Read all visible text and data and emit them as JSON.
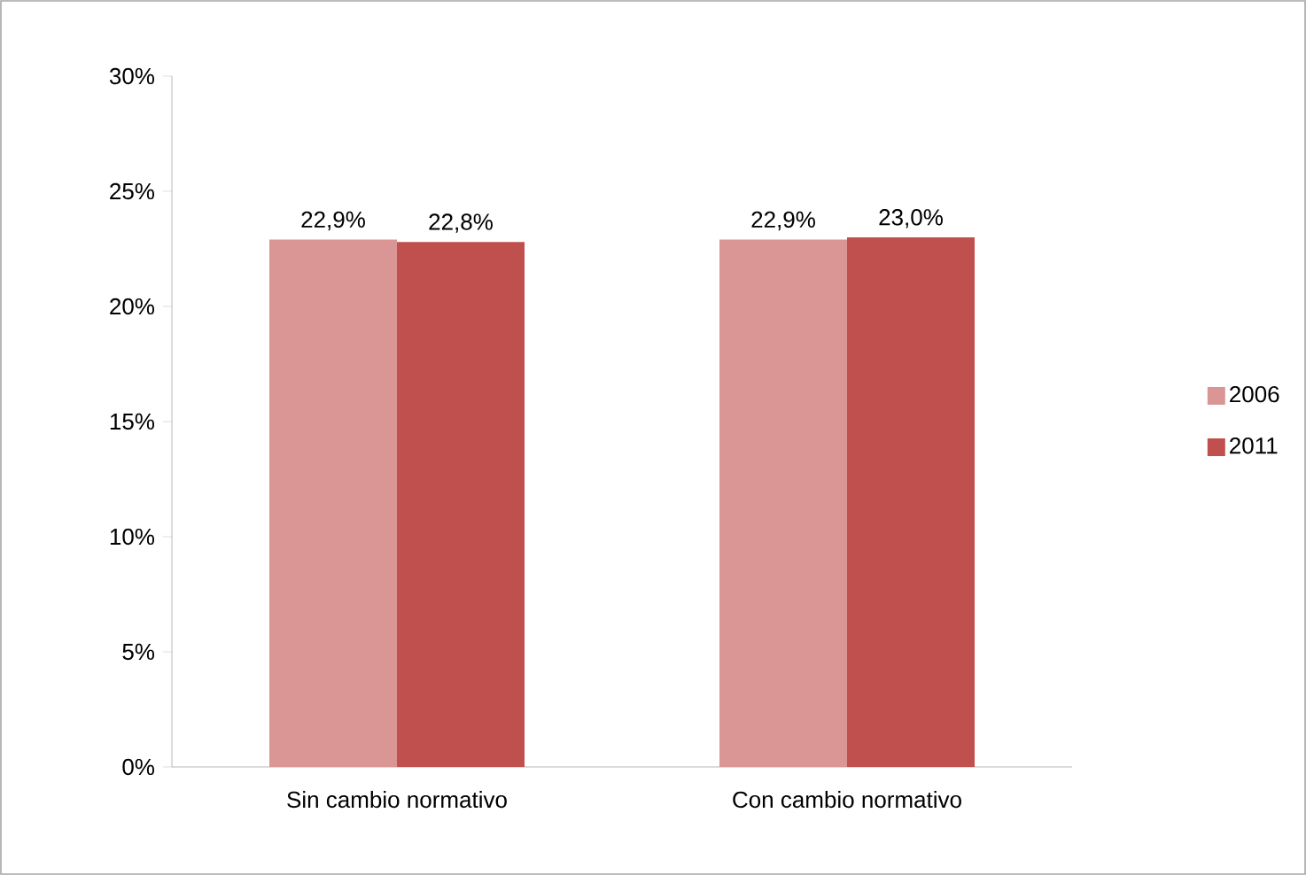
{
  "chart_data": {
    "type": "bar",
    "categories": [
      "Sin cambio normativo",
      "Con cambio normativo"
    ],
    "series": [
      {
        "name": "2006",
        "color": "#d99694",
        "values": [
          22.9,
          22.9
        ],
        "value_labels": [
          "22,9%",
          "22,9%"
        ]
      },
      {
        "name": "2011",
        "color": "#c0504d",
        "values": [
          22.8,
          23.0
        ],
        "value_labels": [
          "22,8%",
          "23,0%"
        ]
      }
    ],
    "ylim": [
      0,
      30
    ],
    "yticks": [
      {
        "value": 0,
        "label": "0%"
      },
      {
        "value": 5,
        "label": "5%"
      },
      {
        "value": 10,
        "label": "10%"
      },
      {
        "value": 15,
        "label": "15%"
      },
      {
        "value": 20,
        "label": "20%"
      },
      {
        "value": 25,
        "label": "25%"
      },
      {
        "value": 30,
        "label": "30%"
      }
    ],
    "grid": false,
    "legend": "right"
  }
}
